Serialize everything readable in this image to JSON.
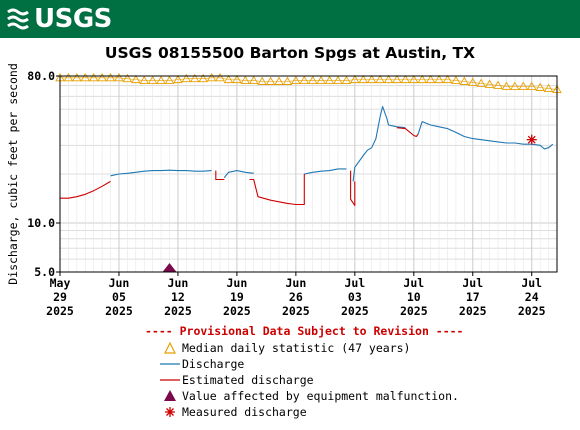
{
  "header": {
    "logo_text": "USGS",
    "logo_color": "#006f41"
  },
  "chart_data": {
    "type": "line",
    "title": "USGS 08155500 Barton Spgs at Austin, TX",
    "ylabel": "Discharge, cubic feet per second",
    "yscale": "log",
    "ylim": [
      5,
      80
    ],
    "y_ticks": [
      "80.0",
      "10.0",
      "5.0"
    ],
    "xlim": [
      "2025-05-29",
      "2025-07-27"
    ],
    "x_ticks": [
      {
        "month": "May",
        "day": "29",
        "year": "2025",
        "date": "2025-05-29"
      },
      {
        "month": "Jun",
        "day": "05",
        "year": "2025",
        "date": "2025-06-05"
      },
      {
        "month": "Jun",
        "day": "12",
        "year": "2025",
        "date": "2025-06-12"
      },
      {
        "month": "Jun",
        "day": "19",
        "year": "2025",
        "date": "2025-06-19"
      },
      {
        "month": "Jun",
        "day": "26",
        "year": "2025",
        "date": "2025-06-26"
      },
      {
        "month": "Jul",
        "day": "03",
        "year": "2025",
        "date": "2025-07-03"
      },
      {
        "month": "Jul",
        "day": "10",
        "year": "2025",
        "date": "2025-07-10"
      },
      {
        "month": "Jul",
        "day": "17",
        "year": "2025",
        "date": "2025-07-17"
      },
      {
        "month": "Jul",
        "day": "24",
        "year": "2025",
        "date": "2025-07-24"
      }
    ],
    "grid": true,
    "legend_position": "bottom",
    "provisional_note": "---- Provisional Data Subject to Revision ----",
    "series": [
      {
        "name": "Median daily statistic (47 years)",
        "kind": "triangle-marker",
        "color": "#e8a000",
        "points": [
          [
            "2025-05-29",
            78
          ],
          [
            "2025-05-30",
            78
          ],
          [
            "2025-05-31",
            78
          ],
          [
            "2025-06-01",
            78
          ],
          [
            "2025-06-02",
            78
          ],
          [
            "2025-06-03",
            78
          ],
          [
            "2025-06-04",
            78
          ],
          [
            "2025-06-05",
            78
          ],
          [
            "2025-06-06",
            77
          ],
          [
            "2025-06-07",
            76
          ],
          [
            "2025-06-08",
            75
          ],
          [
            "2025-06-09",
            75
          ],
          [
            "2025-06-10",
            75
          ],
          [
            "2025-06-11",
            75
          ],
          [
            "2025-06-12",
            76
          ],
          [
            "2025-06-13",
            77
          ],
          [
            "2025-06-14",
            77
          ],
          [
            "2025-06-15",
            77
          ],
          [
            "2025-06-16",
            78
          ],
          [
            "2025-06-17",
            78
          ],
          [
            "2025-06-18",
            76
          ],
          [
            "2025-06-19",
            76
          ],
          [
            "2025-06-20",
            75
          ],
          [
            "2025-06-21",
            75
          ],
          [
            "2025-06-22",
            74
          ],
          [
            "2025-06-23",
            74
          ],
          [
            "2025-06-24",
            74
          ],
          [
            "2025-06-25",
            74
          ],
          [
            "2025-06-26",
            75
          ],
          [
            "2025-06-27",
            75
          ],
          [
            "2025-06-28",
            75
          ],
          [
            "2025-06-29",
            75
          ],
          [
            "2025-06-30",
            75
          ],
          [
            "2025-07-01",
            75
          ],
          [
            "2025-07-02",
            75
          ],
          [
            "2025-07-03",
            76
          ],
          [
            "2025-07-04",
            76
          ],
          [
            "2025-07-05",
            76
          ],
          [
            "2025-07-06",
            76
          ],
          [
            "2025-07-07",
            76
          ],
          [
            "2025-07-08",
            76
          ],
          [
            "2025-07-09",
            76
          ],
          [
            "2025-07-10",
            76
          ],
          [
            "2025-07-11",
            76
          ],
          [
            "2025-07-12",
            76
          ],
          [
            "2025-07-13",
            76
          ],
          [
            "2025-07-14",
            76
          ],
          [
            "2025-07-15",
            75
          ],
          [
            "2025-07-16",
            74
          ],
          [
            "2025-07-17",
            73
          ],
          [
            "2025-07-18",
            72
          ],
          [
            "2025-07-19",
            71
          ],
          [
            "2025-07-20",
            70
          ],
          [
            "2025-07-21",
            69
          ],
          [
            "2025-07-22",
            69
          ],
          [
            "2025-07-23",
            69
          ],
          [
            "2025-07-24",
            69
          ],
          [
            "2025-07-25",
            68
          ],
          [
            "2025-07-26",
            67
          ],
          [
            "2025-07-27",
            66
          ]
        ]
      },
      {
        "name": "Discharge",
        "kind": "line",
        "color": "#1f77b4",
        "segments": [
          [
            [
              "2025-06-04",
              19.5
            ],
            [
              "2025-06-05",
              20.0
            ],
            [
              "2025-06-06",
              20.2
            ],
            [
              "2025-06-07",
              20.5
            ],
            [
              "2025-06-08",
              20.8
            ],
            [
              "2025-06-09",
              21.0
            ],
            [
              "2025-06-10",
              21.0
            ],
            [
              "2025-06-11",
              21.1
            ],
            [
              "2025-06-12",
              21.0
            ],
            [
              "2025-06-13",
              21.0
            ],
            [
              "2025-06-14",
              20.8
            ],
            [
              "2025-06-15",
              20.8
            ],
            [
              "2025-06-16",
              21.0
            ]
          ],
          [
            [
              "2025-06-17.5",
              19.0
            ],
            [
              "2025-06-18",
              20.5
            ],
            [
              "2025-06-19",
              21.0
            ],
            [
              "2025-06-20",
              20.5
            ],
            [
              "2025-06-21",
              20.2
            ]
          ],
          [
            [
              "2025-06-27",
              20.0
            ],
            [
              "2025-06-28",
              20.5
            ],
            [
              "2025-06-29",
              20.8
            ],
            [
              "2025-06-30",
              21.0
            ],
            [
              "2025-07-01",
              21.5
            ],
            [
              "2025-07-02",
              21.5
            ]
          ],
          [
            [
              "2025-07-02.8",
              18.0
            ],
            [
              "2025-07-03",
              22.0
            ],
            [
              "2025-07-04",
              26.0
            ],
            [
              "2025-07-04.5",
              28.0
            ],
            [
              "2025-07-05",
              29.0
            ],
            [
              "2025-07-05.5",
              33.0
            ],
            [
              "2025-07-06",
              45.0
            ],
            [
              "2025-07-06.3",
              52.0
            ],
            [
              "2025-07-06.8",
              44.0
            ],
            [
              "2025-07-07",
              40.0
            ],
            [
              "2025-07-08",
              39.0
            ],
            [
              "2025-07-09",
              38.5
            ]
          ],
          [
            [
              "2025-07-10.5",
              35.0
            ],
            [
              "2025-07-11",
              42.0
            ],
            [
              "2025-07-12",
              40.0
            ],
            [
              "2025-07-13",
              39.0
            ],
            [
              "2025-07-14",
              38.0
            ],
            [
              "2025-07-15",
              36.0
            ],
            [
              "2025-07-16",
              34.0
            ],
            [
              "2025-07-17",
              33.0
            ],
            [
              "2025-07-18",
              32.5
            ],
            [
              "2025-07-19",
              32.0
            ],
            [
              "2025-07-20",
              31.5
            ],
            [
              "2025-07-21",
              31.0
            ],
            [
              "2025-07-22",
              31.0
            ],
            [
              "2025-07-23",
              30.5
            ],
            [
              "2025-07-24",
              30.5
            ],
            [
              "2025-07-25",
              30.0
            ],
            [
              "2025-07-25.5",
              28.5
            ],
            [
              "2025-07-26",
              29.0
            ],
            [
              "2025-07-26.5",
              30.5
            ]
          ]
        ]
      },
      {
        "name": "Estimated discharge",
        "kind": "line",
        "color": "#cc0000",
        "segments": [
          [
            [
              "2025-05-29",
              14.2
            ],
            [
              "2025-05-30",
              14.2
            ],
            [
              "2025-05-31",
              14.5
            ],
            [
              "2025-06-01",
              15.0
            ],
            [
              "2025-06-02",
              15.8
            ],
            [
              "2025-06-03",
              16.8
            ],
            [
              "2025-06-04",
              18.0
            ]
          ],
          [
            [
              "2025-06-16.5",
              21.0
            ],
            [
              "2025-06-16.5",
              18.5
            ],
            [
              "2025-06-17.5",
              18.5
            ]
          ],
          [
            [
              "2025-06-20.5",
              18.5
            ],
            [
              "2025-06-21",
              18.5
            ],
            [
              "2025-06-21.5",
              14.5
            ],
            [
              "2025-06-23",
              13.8
            ],
            [
              "2025-06-25",
              13.2
            ],
            [
              "2025-06-26",
              13.0
            ],
            [
              "2025-06-27",
              13.0
            ],
            [
              "2025-06-27",
              20.0
            ]
          ],
          [
            [
              "2025-07-02.5",
              21.0
            ],
            [
              "2025-07-02.5",
              14.0
            ],
            [
              "2025-07-03",
              12.8
            ],
            [
              "2025-07-03",
              18.0
            ]
          ],
          [
            [
              "2025-07-08",
              38.5
            ],
            [
              "2025-07-09",
              38.0
            ],
            [
              "2025-07-10",
              34.5
            ],
            [
              "2025-07-10.3",
              34.0
            ],
            [
              "2025-07-10.5",
              35.0
            ]
          ]
        ]
      }
    ],
    "markers": [
      {
        "name": "Value affected by equipment malfunction.",
        "kind": "filled-triangle",
        "color": "#7a0a4b",
        "x": "2025-06-11",
        "y": 5
      },
      {
        "name": "Measured discharge",
        "kind": "asterisk",
        "color": "#cc0000",
        "x": "2025-07-24",
        "y": 32.5
      }
    ]
  },
  "legend": {
    "provisional": "---- Provisional Data Subject to Revision ----",
    "items": [
      {
        "label": "Median daily statistic (47 years)",
        "symbol": "open-triangle",
        "color": "#e8a000"
      },
      {
        "label": "Discharge",
        "symbol": "line",
        "color": "#1f77b4"
      },
      {
        "label": "Estimated discharge",
        "symbol": "line",
        "color": "#cc0000"
      },
      {
        "label": "Value affected by equipment malfunction.",
        "symbol": "filled-triangle",
        "color": "#7a0a4b"
      },
      {
        "label": "Measured discharge",
        "symbol": "asterisk",
        "color": "#cc0000"
      }
    ]
  }
}
